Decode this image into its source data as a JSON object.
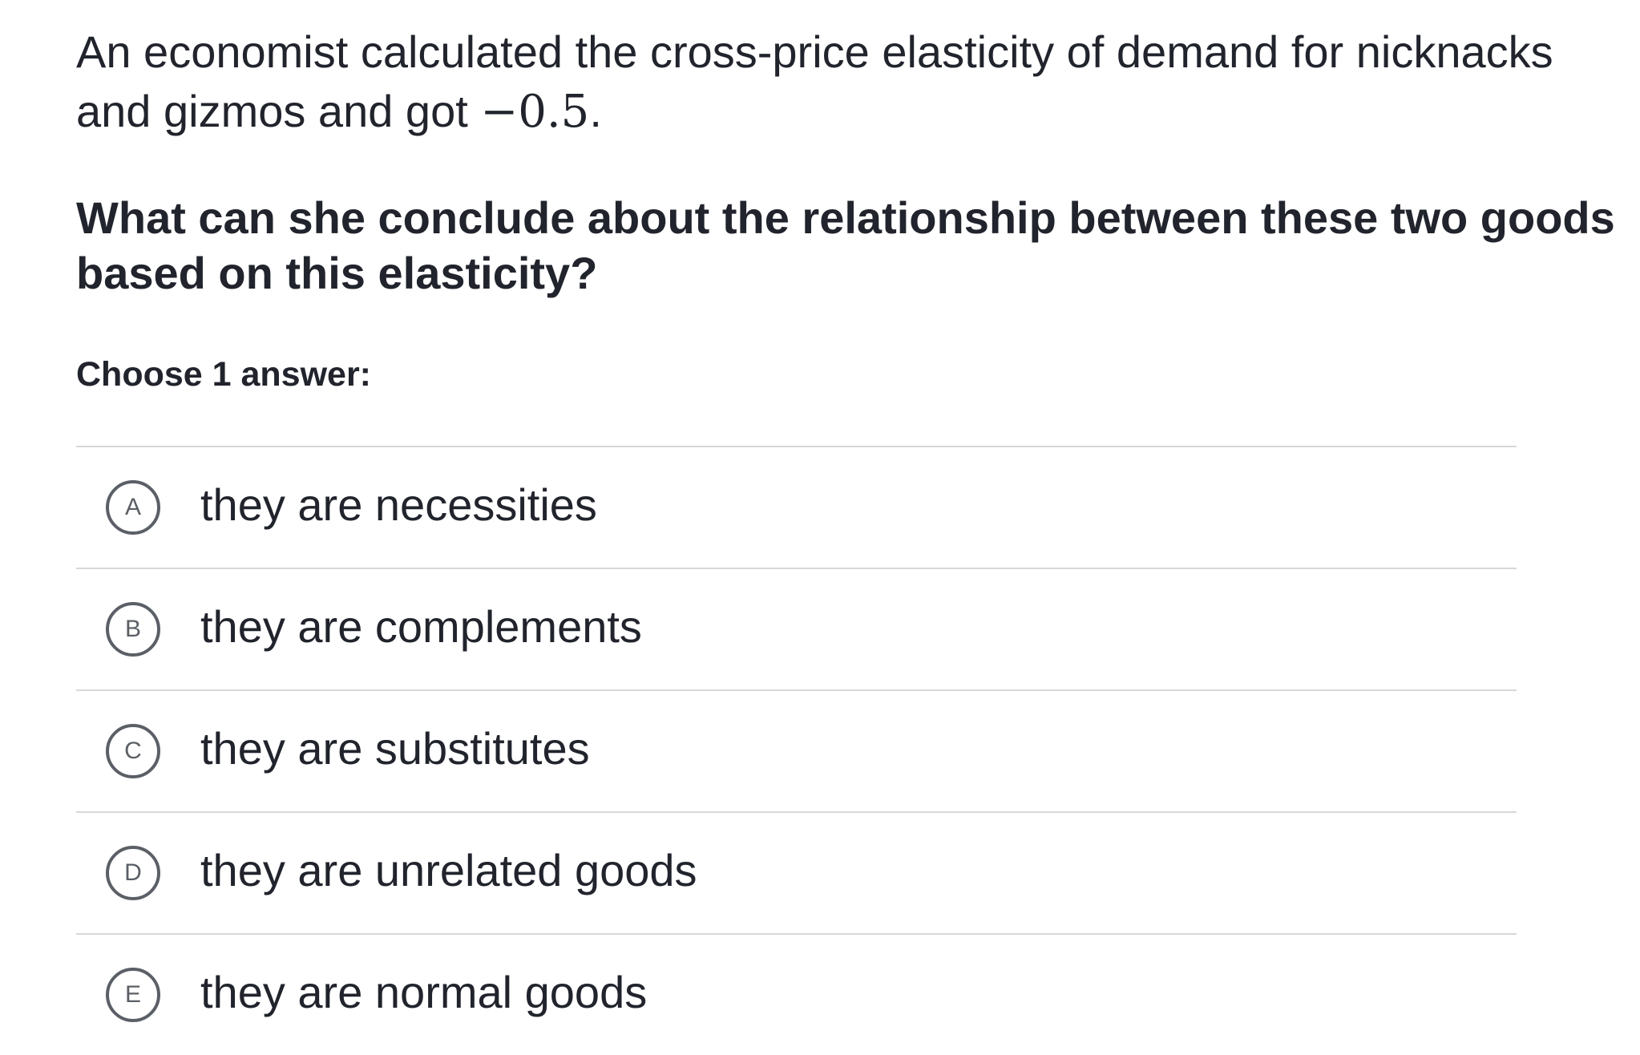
{
  "question": {
    "prompt_text": "An economist calculated the cross-price elasticity of demand for nicknacks and gizmos and got ",
    "elasticity_value": "−0.5",
    "prompt_end": ".",
    "question_text": "What can she conclude about the relationship between these two goods based on this elasticity?",
    "choose_label": "Choose 1 answer:"
  },
  "choices": [
    {
      "letter": "A",
      "text": "they are necessities"
    },
    {
      "letter": "B",
      "text": "they are complements"
    },
    {
      "letter": "C",
      "text": "they are substitutes"
    },
    {
      "letter": "D",
      "text": "they are unrelated goods"
    },
    {
      "letter": "E",
      "text": "they are normal goods"
    }
  ],
  "colors": {
    "text": "#21242c",
    "divider": "#d6d8da",
    "letter_circle": "#5b5f66"
  }
}
